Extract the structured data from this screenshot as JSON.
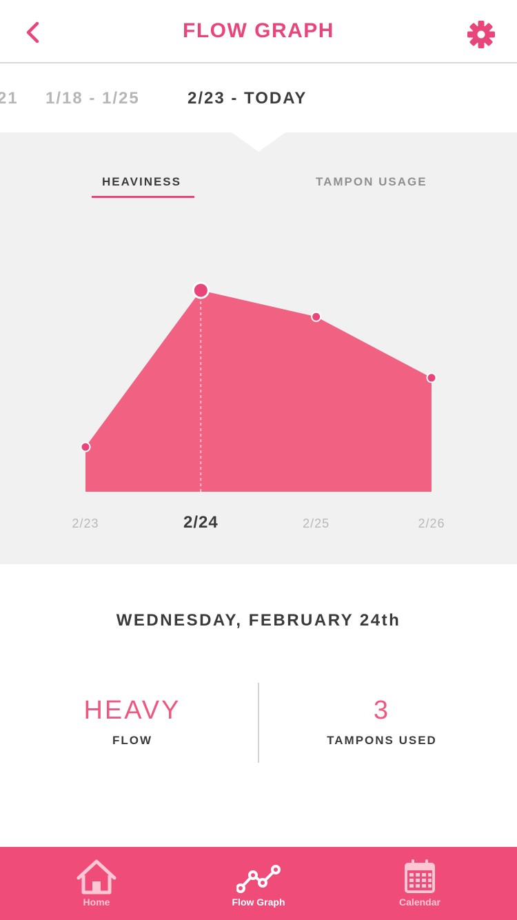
{
  "header": {
    "title": "FLOW GRAPH"
  },
  "date_ranges": [
    {
      "label": "21",
      "active": false
    },
    {
      "label": "1/18 - 1/25",
      "active": false
    },
    {
      "label": "2/23 - TODAY",
      "active": true
    }
  ],
  "tabs": [
    {
      "label": "HEAVINESS",
      "active": true
    },
    {
      "label": "TAMPON USAGE",
      "active": false
    }
  ],
  "chart_data": {
    "type": "area",
    "x": [
      "2/23",
      "2/24",
      "2/25",
      "2/26"
    ],
    "values": [
      0.22,
      0.99,
      0.86,
      0.56
    ],
    "ylim": [
      0,
      1
    ],
    "selected_index": 1,
    "title": "",
    "xlabel": "",
    "ylabel": "",
    "grid": false,
    "colors": {
      "fill": "#f06182",
      "point": "#e8467a",
      "point_outline": "#ffffff",
      "axis_label": "#b8b8b8",
      "axis_label_selected": "#3a3a3a"
    }
  },
  "detail": {
    "date": "WEDNESDAY, FEBRUARY 24th",
    "flow_value": "HEAVY",
    "flow_label": "FLOW",
    "tampons_value": "3",
    "tampons_label": "TAMPONS USED"
  },
  "nav": [
    {
      "label": "Home",
      "icon": "home-icon",
      "active": false
    },
    {
      "label": "Flow Graph",
      "icon": "graph-icon",
      "active": true
    },
    {
      "label": "Calendar",
      "icon": "calendar-icon",
      "active": false
    }
  ],
  "colors": {
    "accent": "#e8467a",
    "nav_bg": "#ef4c79",
    "panel_bg": "#f1f1f1",
    "text_dark": "#3a3a3a",
    "text_muted": "#b6b6b6"
  }
}
